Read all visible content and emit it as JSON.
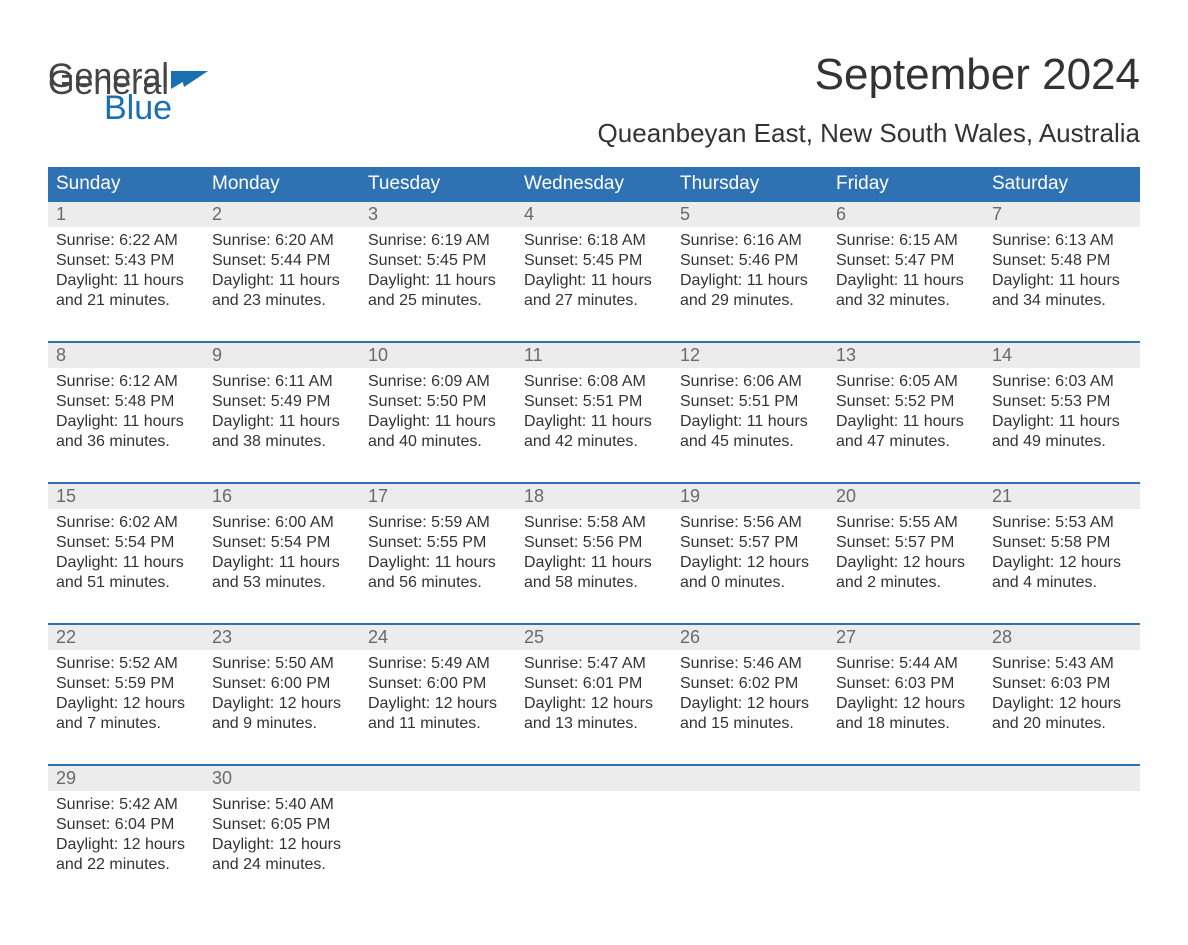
{
  "logo": {
    "general": "General",
    "blue": "Blue",
    "icon_color": "#1a6fb3"
  },
  "title": "September 2024",
  "location": "Queanbeyan East, New South Wales, Australia",
  "header_bg": "#2f72b3",
  "header_fg": "#ffffff",
  "daynum_bg": "#ececec",
  "daynum_fg": "#6a6a6a",
  "text_color": "#333333",
  "rule_color": "#2f72b3",
  "background": "#ffffff",
  "day_names": [
    "Sunday",
    "Monday",
    "Tuesday",
    "Wednesday",
    "Thursday",
    "Friday",
    "Saturday"
  ],
  "weeks": [
    [
      {
        "n": "1",
        "sunrise": "6:22 AM",
        "sunset": "5:43 PM",
        "dl1": "11 hours",
        "dl2": "and 21 minutes."
      },
      {
        "n": "2",
        "sunrise": "6:20 AM",
        "sunset": "5:44 PM",
        "dl1": "11 hours",
        "dl2": "and 23 minutes."
      },
      {
        "n": "3",
        "sunrise": "6:19 AM",
        "sunset": "5:45 PM",
        "dl1": "11 hours",
        "dl2": "and 25 minutes."
      },
      {
        "n": "4",
        "sunrise": "6:18 AM",
        "sunset": "5:45 PM",
        "dl1": "11 hours",
        "dl2": "and 27 minutes."
      },
      {
        "n": "5",
        "sunrise": "6:16 AM",
        "sunset": "5:46 PM",
        "dl1": "11 hours",
        "dl2": "and 29 minutes."
      },
      {
        "n": "6",
        "sunrise": "6:15 AM",
        "sunset": "5:47 PM",
        "dl1": "11 hours",
        "dl2": "and 32 minutes."
      },
      {
        "n": "7",
        "sunrise": "6:13 AM",
        "sunset": "5:48 PM",
        "dl1": "11 hours",
        "dl2": "and 34 minutes."
      }
    ],
    [
      {
        "n": "8",
        "sunrise": "6:12 AM",
        "sunset": "5:48 PM",
        "dl1": "11 hours",
        "dl2": "and 36 minutes."
      },
      {
        "n": "9",
        "sunrise": "6:11 AM",
        "sunset": "5:49 PM",
        "dl1": "11 hours",
        "dl2": "and 38 minutes."
      },
      {
        "n": "10",
        "sunrise": "6:09 AM",
        "sunset": "5:50 PM",
        "dl1": "11 hours",
        "dl2": "and 40 minutes."
      },
      {
        "n": "11",
        "sunrise": "6:08 AM",
        "sunset": "5:51 PM",
        "dl1": "11 hours",
        "dl2": "and 42 minutes."
      },
      {
        "n": "12",
        "sunrise": "6:06 AM",
        "sunset": "5:51 PM",
        "dl1": "11 hours",
        "dl2": "and 45 minutes."
      },
      {
        "n": "13",
        "sunrise": "6:05 AM",
        "sunset": "5:52 PM",
        "dl1": "11 hours",
        "dl2": "and 47 minutes."
      },
      {
        "n": "14",
        "sunrise": "6:03 AM",
        "sunset": "5:53 PM",
        "dl1": "11 hours",
        "dl2": "and 49 minutes."
      }
    ],
    [
      {
        "n": "15",
        "sunrise": "6:02 AM",
        "sunset": "5:54 PM",
        "dl1": "11 hours",
        "dl2": "and 51 minutes."
      },
      {
        "n": "16",
        "sunrise": "6:00 AM",
        "sunset": "5:54 PM",
        "dl1": "11 hours",
        "dl2": "and 53 minutes."
      },
      {
        "n": "17",
        "sunrise": "5:59 AM",
        "sunset": "5:55 PM",
        "dl1": "11 hours",
        "dl2": "and 56 minutes."
      },
      {
        "n": "18",
        "sunrise": "5:58 AM",
        "sunset": "5:56 PM",
        "dl1": "11 hours",
        "dl2": "and 58 minutes."
      },
      {
        "n": "19",
        "sunrise": "5:56 AM",
        "sunset": "5:57 PM",
        "dl1": "12 hours",
        "dl2": "and 0 minutes."
      },
      {
        "n": "20",
        "sunrise": "5:55 AM",
        "sunset": "5:57 PM",
        "dl1": "12 hours",
        "dl2": "and 2 minutes."
      },
      {
        "n": "21",
        "sunrise": "5:53 AM",
        "sunset": "5:58 PM",
        "dl1": "12 hours",
        "dl2": "and 4 minutes."
      }
    ],
    [
      {
        "n": "22",
        "sunrise": "5:52 AM",
        "sunset": "5:59 PM",
        "dl1": "12 hours",
        "dl2": "and 7 minutes."
      },
      {
        "n": "23",
        "sunrise": "5:50 AM",
        "sunset": "6:00 PM",
        "dl1": "12 hours",
        "dl2": "and 9 minutes."
      },
      {
        "n": "24",
        "sunrise": "5:49 AM",
        "sunset": "6:00 PM",
        "dl1": "12 hours",
        "dl2": "and 11 minutes."
      },
      {
        "n": "25",
        "sunrise": "5:47 AM",
        "sunset": "6:01 PM",
        "dl1": "12 hours",
        "dl2": "and 13 minutes."
      },
      {
        "n": "26",
        "sunrise": "5:46 AM",
        "sunset": "6:02 PM",
        "dl1": "12 hours",
        "dl2": "and 15 minutes."
      },
      {
        "n": "27",
        "sunrise": "5:44 AM",
        "sunset": "6:03 PM",
        "dl1": "12 hours",
        "dl2": "and 18 minutes."
      },
      {
        "n": "28",
        "sunrise": "5:43 AM",
        "sunset": "6:03 PM",
        "dl1": "12 hours",
        "dl2": "and 20 minutes."
      }
    ],
    [
      {
        "n": "29",
        "sunrise": "5:42 AM",
        "sunset": "6:04 PM",
        "dl1": "12 hours",
        "dl2": "and 22 minutes."
      },
      {
        "n": "30",
        "sunrise": "5:40 AM",
        "sunset": "6:05 PM",
        "dl1": "12 hours",
        "dl2": "and 24 minutes."
      },
      null,
      null,
      null,
      null,
      null
    ]
  ],
  "labels": {
    "sunrise_prefix": "Sunrise: ",
    "sunset_prefix": "Sunset: ",
    "daylight_prefix": "Daylight: "
  }
}
